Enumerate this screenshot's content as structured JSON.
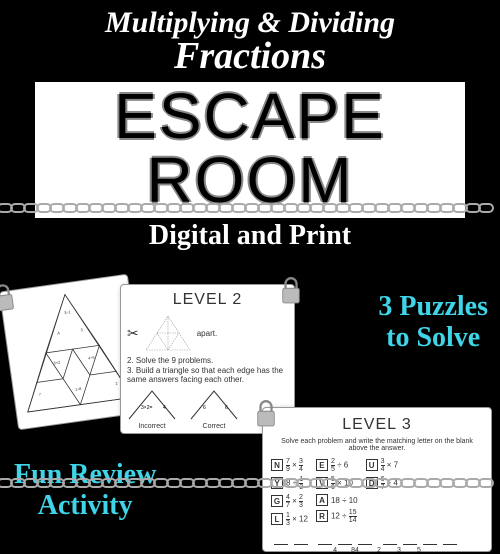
{
  "title": {
    "line1": "Multiplying & Dividing",
    "line2": "Fractions",
    "banner": "ESCAPE ROOM",
    "subtitle": "Digital and Print"
  },
  "puzzles": {
    "line1": "3 Puzzles",
    "line2": "to Solve"
  },
  "fun": {
    "line1": "Fun Review",
    "line2": "Activity"
  },
  "level2": {
    "title": "LEVEL 2",
    "step1": "apart.",
    "step2": "2. Solve the 9 problems.",
    "step3": "3. Build a triangle so that each edge has the same answers facing each other.",
    "incorrect": "Incorrect",
    "correct": "Correct"
  },
  "level3": {
    "title": "LEVEL 3",
    "instruction": "Solve each problem and write the matching letter on the blank above the answer.",
    "problems": [
      {
        "letter": "N",
        "a_n": "7",
        "a_d": "9",
        "op": "×",
        "b_n": "3",
        "b_d": "4"
      },
      {
        "letter": "Y",
        "a_n": "8",
        "a_d": "",
        "op": "÷",
        "b_n": "1",
        "b_d": "2"
      },
      {
        "letter": "G",
        "a_n": "4",
        "a_d": "7",
        "op": "×",
        "b_n": "2",
        "b_d": "3"
      },
      {
        "letter": "L",
        "a_n": "1",
        "a_d": "3",
        "op": "×",
        "b_n": "12",
        "b_d": ""
      }
    ],
    "problems2": [
      {
        "letter": "E",
        "a_n": "2",
        "a_d": "5",
        "op": "÷",
        "b_n": "6",
        "b_d": ""
      },
      {
        "letter": "V",
        "a_n": "5",
        "a_d": "6",
        "op": "×",
        "b_n": "10",
        "b_d": ""
      },
      {
        "letter": "A",
        "a_n": "18",
        "a_d": "",
        "op": "÷",
        "b_n": "10",
        "b_d": ""
      },
      {
        "letter": "R",
        "a_n": "12",
        "a_d": "",
        "op": "÷",
        "b_n": "15",
        "b_d": "14"
      }
    ],
    "problems3": [
      {
        "letter": "U",
        "a_n": "3",
        "a_d": "4",
        "op": "×",
        "b_n": "7",
        "b_d": ""
      },
      {
        "letter": "D",
        "a_n": "6",
        "a_d": "7",
        "op": "÷",
        "b_n": "4",
        "b_d": ""
      }
    ],
    "answers": [
      "4",
      "84",
      "2",
      "3",
      "5"
    ]
  },
  "colors": {
    "bg": "#000000",
    "accent": "#3fd4e8",
    "white": "#ffffff",
    "chain": "#aaaaaa"
  }
}
